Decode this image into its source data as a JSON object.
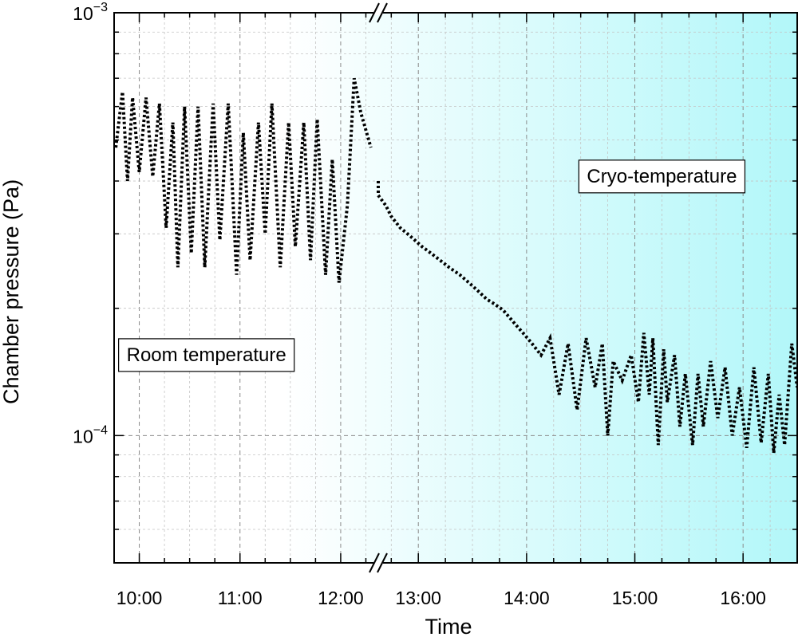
{
  "chart_data": {
    "type": "line",
    "xlabel": "Time",
    "ylabel": "Chamber pressure (Pa)",
    "yscale": "log",
    "ylim": [
      5e-05,
      0.001
    ],
    "y_ticks": [
      {
        "value": 0.001,
        "label": "10",
        "exponent": "−3"
      },
      {
        "value": 0.0001,
        "label": "10",
        "exponent": "−4"
      }
    ],
    "x_axis_break": {
      "from": "12:20",
      "to": "12:40"
    },
    "x_segments": [
      {
        "start": "09:45",
        "end": "12:20"
      },
      {
        "start": "12:40",
        "end": "16:30"
      }
    ],
    "x_tick_labels": [
      "10:00",
      "11:00",
      "12:00",
      "13:00",
      "14:00",
      "15:00",
      "16:00"
    ],
    "grid": true,
    "line_style": "dotted",
    "series_color": "#000000",
    "background_gradient": {
      "from": "#ffffff",
      "to": "#b2f7f9"
    },
    "annotations": [
      {
        "text": "Room temperature",
        "x": "10:40",
        "y": 0.000155
      },
      {
        "text": "Cryo-temperature",
        "x": "15:15",
        "y": 0.00041
      }
    ],
    "series": [
      {
        "x": [
          "09:46",
          "09:50",
          "09:53",
          "09:56",
          "10:00",
          "10:04",
          "10:08",
          "10:12",
          "10:16",
          "10:20",
          "10:23",
          "10:27",
          "10:31",
          "10:35",
          "10:39",
          "10:44",
          "10:48",
          "10:53",
          "10:58",
          "11:02",
          "11:06",
          "11:11",
          "11:15",
          "11:19",
          "11:24",
          "11:29",
          "11:33",
          "11:38",
          "11:42",
          "11:46",
          "11:51",
          "11:55",
          "11:59",
          "12:04",
          "12:08",
          "12:12",
          "12:18",
          "12:35",
          "12:39",
          "12:42",
          "12:45",
          "12:50",
          "12:54",
          "12:58",
          "13:02",
          "13:07",
          "13:12",
          "13:17",
          "13:23",
          "13:28",
          "13:33",
          "13:38",
          "13:42",
          "13:47",
          "13:53",
          "13:58",
          "14:03",
          "14:08",
          "14:13",
          "14:18",
          "14:23",
          "14:28",
          "14:33",
          "14:38",
          "14:42",
          "14:45",
          "14:48",
          "14:53",
          "14:58",
          "15:02",
          "15:05",
          "15:08",
          "15:10",
          "15:13",
          "15:16",
          "15:18",
          "15:22",
          "15:25",
          "15:28",
          "15:32",
          "15:35",
          "15:38",
          "15:42",
          "15:46",
          "15:50",
          "15:54",
          "15:58",
          "16:02",
          "16:06",
          "16:10",
          "16:14",
          "16:17",
          "16:20",
          "16:23",
          "16:27",
          "16:30"
        ],
        "values": [
          0.00048,
          0.00065,
          0.0004,
          0.00063,
          0.00042,
          0.00063,
          0.00041,
          0.00061,
          0.00031,
          0.00055,
          0.00025,
          0.0006,
          0.00027,
          0.0006,
          0.00025,
          0.00061,
          0.00029,
          0.00061,
          0.00024,
          0.00052,
          0.00026,
          0.00055,
          0.0003,
          0.00061,
          0.00025,
          0.00055,
          0.00028,
          0.00055,
          0.00026,
          0.00056,
          0.00024,
          0.00045,
          0.00023,
          0.00035,
          0.0007,
          0.00058,
          0.00048,
          0.0004,
          0.00037,
          0.00035,
          0.00033,
          0.00031,
          0.0003,
          0.00029,
          0.00028,
          0.00027,
          0.00026,
          0.00025,
          0.00024,
          0.00023,
          0.00022,
          0.00021,
          0.000205,
          0.000198,
          0.000185,
          0.000175,
          0.000165,
          0.000155,
          0.00017,
          0.000125,
          0.000165,
          0.000115,
          0.00017,
          0.00013,
          0.000165,
          0.0001,
          0.00015,
          0.000135,
          0.000155,
          0.00012,
          0.000175,
          0.000125,
          0.00017,
          9.5e-05,
          0.00016,
          0.00012,
          0.000155,
          0.000105,
          0.00014,
          9.5e-05,
          0.00014,
          0.000105,
          0.00015,
          0.00011,
          0.000145,
          0.0001,
          0.00013,
          9.35e-05,
          0.000145,
          9.62e-05,
          0.00014,
          9.1e-05,
          0.000125,
          9.5e-05,
          0.000165,
          0.00013
        ]
      }
    ]
  }
}
